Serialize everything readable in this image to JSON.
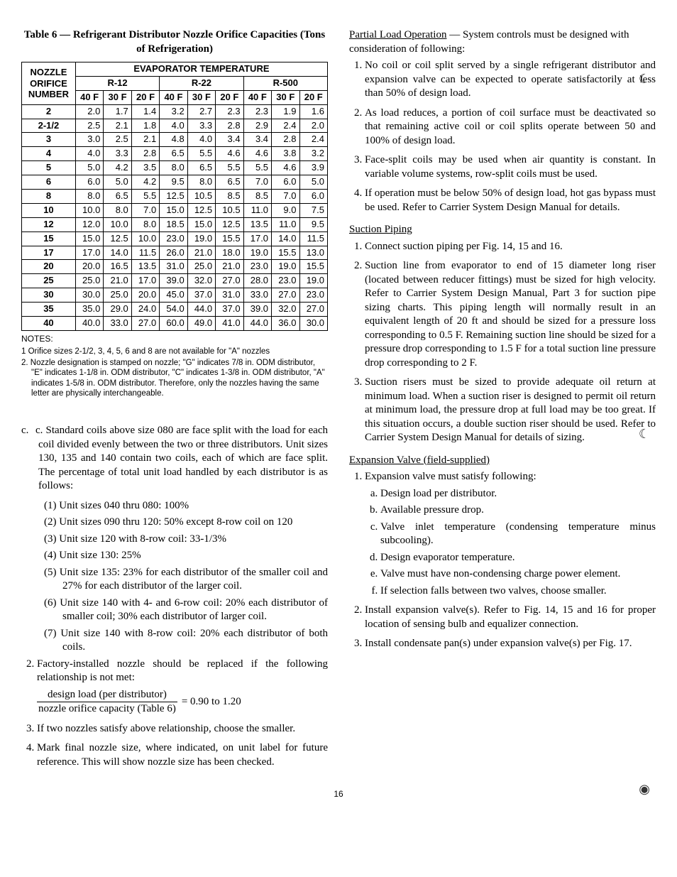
{
  "table": {
    "title": "Table 6 — Refrigerant Distributor Nozzle Orifice Capacities (Tons of Refrigeration)",
    "corner_label_l1": "NOZZLE",
    "corner_label_l2": "ORIFICE",
    "corner_label_l3": "NUMBER",
    "spanning_header": "EVAPORATOR TEMPERATURE",
    "refrigerants": [
      "R-12",
      "R-22",
      "R-500"
    ],
    "temps": [
      "40 F",
      "30 F",
      "20 F"
    ],
    "rows": [
      {
        "n": "2",
        "v": [
          "2.0",
          "1.7",
          "1.4",
          "3.2",
          "2.7",
          "2.3",
          "2.3",
          "1.9",
          "1.6"
        ]
      },
      {
        "n": "2-1/2",
        "v": [
          "2.5",
          "2.1",
          "1.8",
          "4.0",
          "3.3",
          "2.8",
          "2.9",
          "2.4",
          "2.0"
        ]
      },
      {
        "n": "3",
        "v": [
          "3.0",
          "2.5",
          "2.1",
          "4.8",
          "4.0",
          "3.4",
          "3.4",
          "2.8",
          "2.4"
        ]
      },
      {
        "n": "4",
        "v": [
          "4.0",
          "3.3",
          "2.8",
          "6.5",
          "5.5",
          "4.6",
          "4.6",
          "3.8",
          "3.2"
        ]
      },
      {
        "n": "5",
        "v": [
          "5.0",
          "4.2",
          "3.5",
          "8.0",
          "6.5",
          "5.5",
          "5.5",
          "4.6",
          "3.9"
        ]
      },
      {
        "n": "6",
        "v": [
          "6.0",
          "5.0",
          "4.2",
          "9.5",
          "8.0",
          "6.5",
          "7.0",
          "6.0",
          "5.0"
        ]
      },
      {
        "n": "8",
        "v": [
          "8.0",
          "6.5",
          "5.5",
          "12.5",
          "10.5",
          "8.5",
          "8.5",
          "7.0",
          "6.0"
        ]
      },
      {
        "n": "10",
        "v": [
          "10.0",
          "8.0",
          "7.0",
          "15.0",
          "12.5",
          "10.5",
          "11.0",
          "9.0",
          "7.5"
        ]
      },
      {
        "n": "12",
        "v": [
          "12.0",
          "10.0",
          "8.0",
          "18.5",
          "15.0",
          "12.5",
          "13.5",
          "11.0",
          "9.5"
        ]
      },
      {
        "n": "15",
        "v": [
          "15.0",
          "12.5",
          "10.0",
          "23.0",
          "19.0",
          "15.5",
          "17.0",
          "14.0",
          "11.5"
        ]
      },
      {
        "n": "17",
        "v": [
          "17.0",
          "14.0",
          "11.5",
          "26.0",
          "21.0",
          "18.0",
          "19.0",
          "15.5",
          "13.0"
        ]
      },
      {
        "n": "20",
        "v": [
          "20.0",
          "16.5",
          "13.5",
          "31.0",
          "25.0",
          "21.0",
          "23.0",
          "19.0",
          "15.5"
        ]
      },
      {
        "n": "25",
        "v": [
          "25.0",
          "21.0",
          "17.0",
          "39.0",
          "32.0",
          "27.0",
          "28.0",
          "23.0",
          "19.0"
        ]
      },
      {
        "n": "30",
        "v": [
          "30.0",
          "25.0",
          "20.0",
          "45.0",
          "37.0",
          "31.0",
          "33.0",
          "27.0",
          "23.0"
        ]
      },
      {
        "n": "35",
        "v": [
          "35.0",
          "29.0",
          "24.0",
          "54.0",
          "44.0",
          "37.0",
          "39.0",
          "32.0",
          "27.0"
        ]
      },
      {
        "n": "40",
        "v": [
          "40.0",
          "33.0",
          "27.0",
          "60.0",
          "49.0",
          "41.0",
          "44.0",
          "36.0",
          "30.0"
        ]
      }
    ],
    "notes_label": "NOTES:",
    "notes": [
      "1  Orifice sizes 2-1/2, 3, 4, 5, 6 and 8 are not available for \"A\" nozzles",
      "2. Nozzle designation is stamped on nozzle; \"G\" indicates 7/8 in. ODM distributor, \"E\" indicates 1-1/8 in. ODM distributor, \"C\" indicates 1-3/8 in. ODM distributor, \"A\" indicates 1-5/8 in. ODM distributor. Therefore, only the nozzles having the same letter are physically interchangeable."
    ]
  },
  "left": {
    "c_intro": "c. Standard coils above size 080 are face split with the load for each coil divided evenly between the two or three distributors. Unit sizes 130, 135 and 140  contain two coils, each of which are face  split. The  percentage of total unit load handled by each distributor is as follows:",
    "c_items": [
      "(1) Unit sizes 040 thru 080:  100%",
      "(2) Unit sizes 090 thru 120:  50%   except 8-row coil on 120",
      "(3) Unit size 120 with 8-row coil:  33-1/3%",
      "(4) Unit size 130:  25%",
      "(5) Unit size 135:  23% for each distributor of the smaller coil and 27% for each distributor of the larger coil.",
      "(6) Unit size 140 with 4- and 6-row coil: 20% each distributor of smaller coil; 30% each distributor of larger coil.",
      "(7) Unit size 140 with 8-row coil:  20% each distributor of both coils."
    ],
    "item2": "Factory-installed nozzle should be replaced if the following relationship is not met:",
    "frac_num": "design load (per distributor)",
    "frac_den": "nozzle orifice capacity (Table 6)",
    "frac_rhs": "= 0.90 to 1.20",
    "item3": "If two nozzles satisfy above relationship, choose the smaller.",
    "item4": "Mark final nozzle size, where indicated, on unit label for future reference. This will show nozzle size has been checked."
  },
  "right": {
    "partial_head": "Partial Load Operation",
    "partial_rest": " — System controls must be designed with consideration of following:",
    "partial_items": [
      "No coil or coil split served by a single refrigerant distributor and expansion valve can be expected to operate satisfactorily at less than 50% of design load.",
      "As load reduces, a portion of coil surface must be deactivated so that remaining active coil or coil splits operate between 50 and 100% of design load.",
      "Face-split coils may be used when air quantity is constant. In variable volume systems, row-split coils must be used.",
      "If operation must be below 50% of design load, hot gas bypass must be used. Refer to Carrier System Design Manual for details."
    ],
    "suction_head": "Suction Piping",
    "suction_items": [
      "Connect suction piping per Fig. 14, 15 and 16.",
      "Suction line from evaporator to end of 15 diameter long riser (located between reducer fittings) must be sized for high velocity. Refer to Carrier System Design Manual, Part 3 for suction pipe sizing charts. This piping length will normally result in an equivalent length of 20 ft and should be sized for a pressure loss corresponding to 0.5 F. Remaining suction line should be sized for a pressure drop corresponding to 1.5 F for a total suction line pressure drop corresponding to 2 F.",
      "Suction risers must be sized to provide adequate oil return at minimum load. When a suction riser is designed to permit oil return at minimum load, the pressure drop at full load may be too great. If this situation occurs, a double suction riser should be used. Refer to Carrier System Design Manual for details of sizing."
    ],
    "exp_head": "Expansion Valve (field-supplied)",
    "exp_intro": "Expansion valve must satisfy following:",
    "exp_sub": [
      "Design load per distributor.",
      "Available pressure drop.",
      "Valve inlet temperature (condensing temperature minus subcooling).",
      "Design evaporator temperature.",
      "Valve must have non-condensing charge power element.",
      "If selection falls between two valves, choose smaller."
    ],
    "exp_item2": "Install expansion valve(s). Refer to Fig. 14, 15 and 16 for proper location of sensing bulb and equalizer connection.",
    "exp_item3": "Install condensate pan(s) under expansion valve(s) per Fig. 17."
  },
  "page_number": "16"
}
